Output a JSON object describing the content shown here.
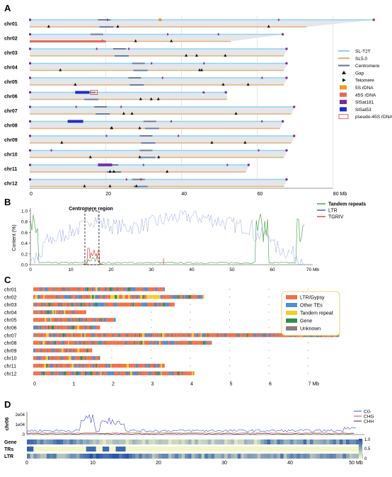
{
  "panels": {
    "a": "A",
    "b": "B",
    "c": "C",
    "d": "D"
  },
  "panel_a": {
    "chromosomes": [
      {
        "name": "chr01",
        "t2t": 91,
        "sl5": 73
      },
      {
        "name": "chr02",
        "t2t": 67,
        "sl5": 53
      },
      {
        "name": "chr03",
        "t2t": 68,
        "sl5": 67
      },
      {
        "name": "chr04",
        "t2t": 68,
        "sl5": 67
      },
      {
        "name": "chr05",
        "t2t": 68,
        "sl5": 67
      },
      {
        "name": "chr06",
        "t2t": 52,
        "sl5": 52
      },
      {
        "name": "chr07",
        "t2t": 70,
        "sl5": 69
      },
      {
        "name": "chr08",
        "t2t": 67,
        "sl5": 66
      },
      {
        "name": "chr09",
        "t2t": 70,
        "sl5": 69
      },
      {
        "name": "chr10",
        "t2t": 68,
        "sl5": 67
      },
      {
        "name": "chr11",
        "t2t": 58,
        "sl5": 57
      },
      {
        "name": "chr12",
        "t2t": 68,
        "sl5": 67
      }
    ],
    "xticks": [
      "0",
      "20",
      "40",
      "60",
      "80 Mb"
    ],
    "legend": [
      "SL-T2T",
      "SL5.0",
      "Centromere",
      "Gap",
      "Telomere",
      "5S rDNA",
      "45S rDNA",
      "SlSat181",
      "SlSat53",
      "pseudo-45S rDNA"
    ],
    "colors": {
      "t2t": "#8fd3f4",
      "sl5": "#e0b27a",
      "cen": "#6a7f9c",
      "band": "#e4e6ea"
    }
  },
  "panel_b": {
    "ylabel": "Content (%)",
    "yticks": [
      "0.0",
      "0.2",
      "0.4",
      "0.6",
      "0.8",
      "1.0"
    ],
    "xticks": [
      "0",
      "10",
      "20",
      "30",
      "40",
      "50",
      "60",
      "70 Mb"
    ],
    "annotation": "Centromere region",
    "legend": [
      "Tandem repeats",
      "LTR",
      "TGRIV"
    ],
    "colors": {
      "tr": "#3c9b3c",
      "ltr": "#3b4bd8",
      "tgriv": "#e23b3b"
    }
  },
  "panel_c": {
    "chromosomes": [
      {
        "name": "chr01",
        "len": 3.35
      },
      {
        "name": "chr02",
        "len": 4.35
      },
      {
        "name": "chr03",
        "len": 3.6
      },
      {
        "name": "chr04",
        "len": 1.35
      },
      {
        "name": "chr05",
        "len": 2.1
      },
      {
        "name": "chr06",
        "len": 1.7
      },
      {
        "name": "chr07",
        "len": 7.8
      },
      {
        "name": "chr08",
        "len": 4.55
      },
      {
        "name": "chr09",
        "len": 1.5
      },
      {
        "name": "chr10",
        "len": 1.7
      },
      {
        "name": "chr11",
        "len": 3.35
      },
      {
        "name": "chr12",
        "len": 4.1
      }
    ],
    "xticks": [
      "0",
      "1",
      "2",
      "3",
      "4",
      "5",
      "6",
      "7 Mb"
    ],
    "legend": [
      {
        "label": "LTR/Gypsy",
        "color": "#f07048"
      },
      {
        "label": "Other TEs",
        "color": "#4e8fd0"
      },
      {
        "label": "Tandem repeat",
        "color": "#f5cc2a"
      },
      {
        "label": "Gene",
        "color": "#2f8f4a"
      },
      {
        "label": "Unknown",
        "color": "#8c7b86"
      }
    ]
  },
  "panel_d": {
    "ylabel": "chr06",
    "yticks": [
      "2e04",
      "1e04",
      "0"
    ],
    "xticks": [
      "0",
      "10",
      "20",
      "30",
      "40",
      "50 Mb"
    ],
    "legend": [
      {
        "label": "CG",
        "color": "#3b4bd8"
      },
      {
        "label": "CHG",
        "color": "#e23b3b"
      },
      {
        "label": "CHH",
        "color": "#333333"
      }
    ],
    "tracks": [
      "Gene",
      "TRs",
      "LTR"
    ],
    "scale": [
      "1.0",
      "0.5",
      "0"
    ]
  }
}
